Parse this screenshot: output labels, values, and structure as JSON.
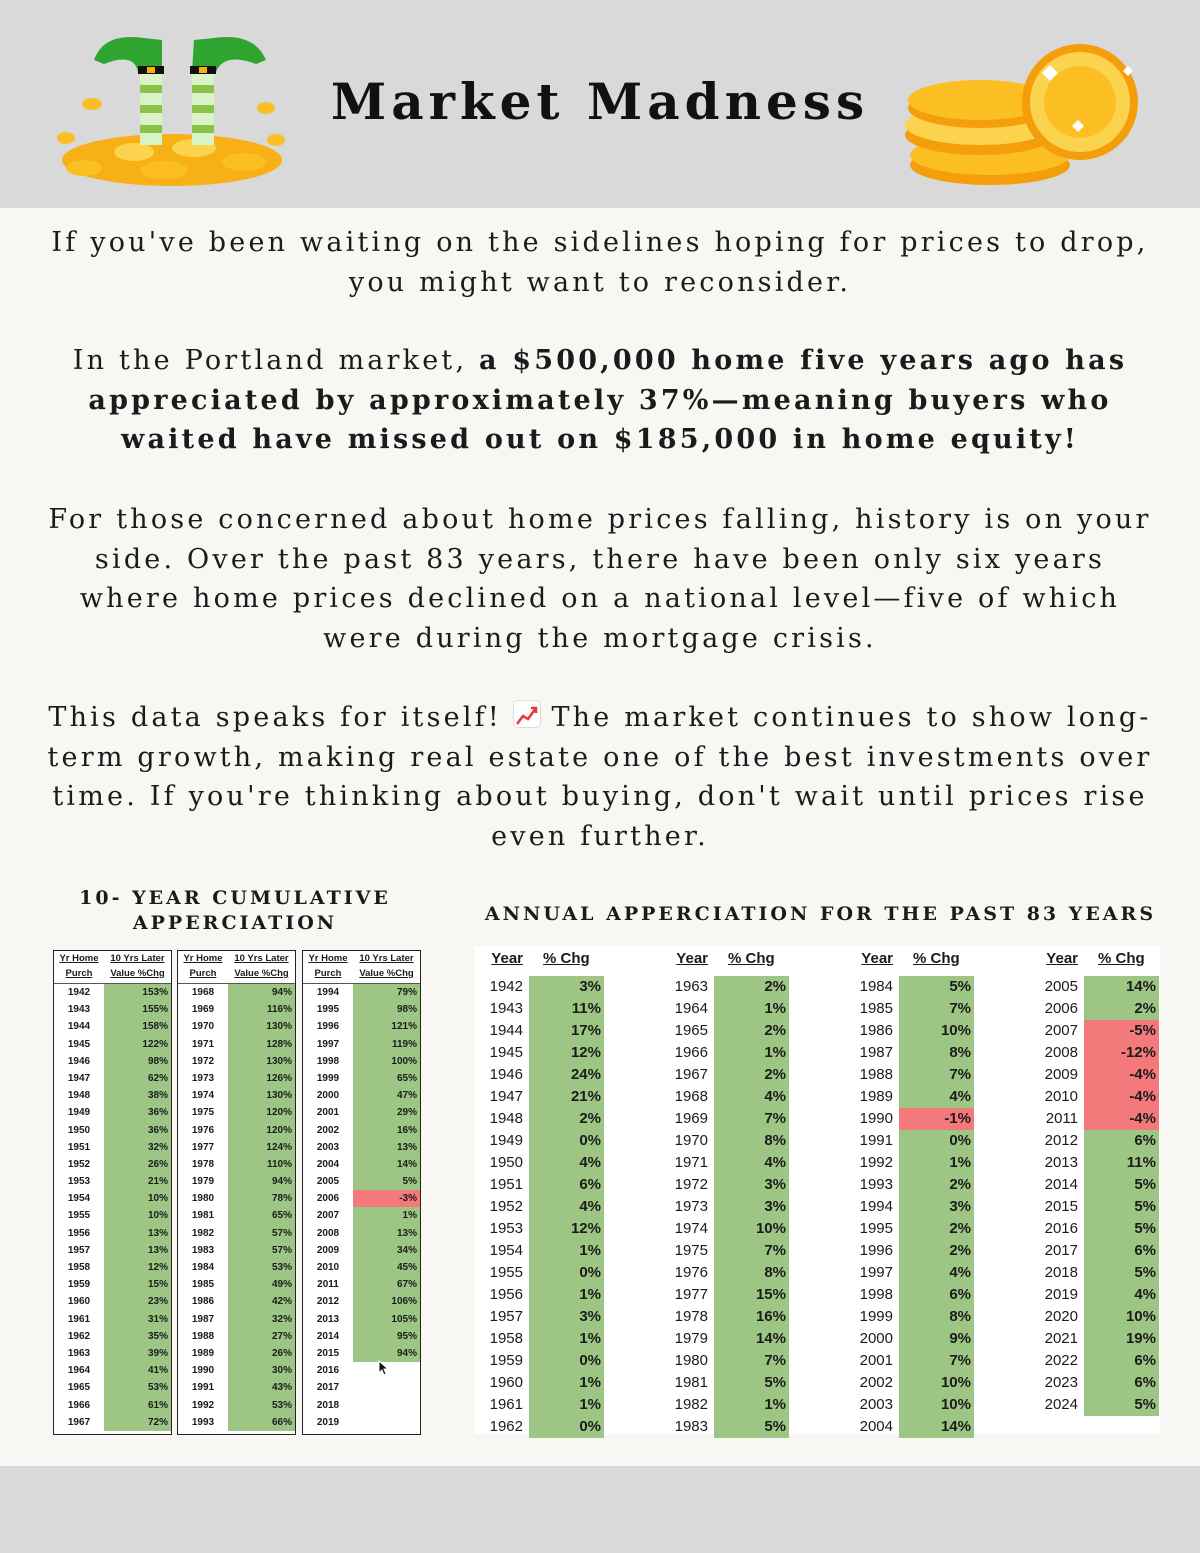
{
  "title": "Market Madness",
  "paragraphs": {
    "p1_line1": "If you've been waiting on the sidelines hoping for prices to drop,",
    "p1_line2": "you might want to reconsider.",
    "p2_prefix": "In the Portland market, ",
    "p2_bold": "a $500,000 home five years ago has appreciated by approximately 37%—meaning buyers who waited have missed out on $185,000 in home equity!",
    "p3": "For those concerned about home prices falling, history is on your side. Over the past 83 years, there have been only six years where home prices declined on a national level—five of which were during the mortgage crisis.",
    "p4_prefix": "This data speaks for itself! ",
    "p4_suffix": " The market continues to show long-term growth, making real estate one of the best investments over time. If you're thinking about buying, don't wait until prices rise even further."
  },
  "cumulative": {
    "title_line1": "10- YEAR CUMULATIVE",
    "title_line2": "APPERCIATION",
    "header_year": "Yr Home Purch",
    "header_value": "10 Yrs Later Value %Chg",
    "tables": [
      {
        "rows": [
          [
            "1942",
            "153%"
          ],
          [
            "1943",
            "155%"
          ],
          [
            "1944",
            "158%"
          ],
          [
            "1945",
            "122%"
          ],
          [
            "1946",
            "98%"
          ],
          [
            "1947",
            "62%"
          ],
          [
            "1948",
            "38%"
          ],
          [
            "1949",
            "36%"
          ],
          [
            "1950",
            "36%"
          ],
          [
            "1951",
            "32%"
          ],
          [
            "1952",
            "26%"
          ],
          [
            "1953",
            "21%"
          ],
          [
            "1954",
            "10%"
          ],
          [
            "1955",
            "10%"
          ],
          [
            "1956",
            "13%"
          ],
          [
            "1957",
            "13%"
          ],
          [
            "1958",
            "12%"
          ],
          [
            "1959",
            "15%"
          ],
          [
            "1960",
            "23%"
          ],
          [
            "1961",
            "31%"
          ],
          [
            "1962",
            "35%"
          ],
          [
            "1963",
            "39%"
          ],
          [
            "1964",
            "41%"
          ],
          [
            "1965",
            "53%"
          ],
          [
            "1966",
            "61%"
          ],
          [
            "1967",
            "72%"
          ]
        ]
      },
      {
        "rows": [
          [
            "1968",
            "94%"
          ],
          [
            "1969",
            "116%"
          ],
          [
            "1970",
            "130%"
          ],
          [
            "1971",
            "128%"
          ],
          [
            "1972",
            "130%"
          ],
          [
            "1973",
            "126%"
          ],
          [
            "1974",
            "130%"
          ],
          [
            "1975",
            "120%"
          ],
          [
            "1976",
            "120%"
          ],
          [
            "1977",
            "124%"
          ],
          [
            "1978",
            "110%"
          ],
          [
            "1979",
            "94%"
          ],
          [
            "1980",
            "78%"
          ],
          [
            "1981",
            "65%"
          ],
          [
            "1982",
            "57%"
          ],
          [
            "1983",
            "57%"
          ],
          [
            "1984",
            "53%"
          ],
          [
            "1985",
            "49%"
          ],
          [
            "1986",
            "42%"
          ],
          [
            "1987",
            "32%"
          ],
          [
            "1988",
            "27%"
          ],
          [
            "1989",
            "26%"
          ],
          [
            "1990",
            "30%"
          ],
          [
            "1991",
            "43%"
          ],
          [
            "1992",
            "53%"
          ],
          [
            "1993",
            "66%"
          ]
        ]
      },
      {
        "rows": [
          [
            "1994",
            "79%"
          ],
          [
            "1995",
            "98%"
          ],
          [
            "1996",
            "121%"
          ],
          [
            "1997",
            "119%"
          ],
          [
            "1998",
            "100%"
          ],
          [
            "1999",
            "65%"
          ],
          [
            "2000",
            "47%"
          ],
          [
            "2001",
            "29%"
          ],
          [
            "2002",
            "16%"
          ],
          [
            "2003",
            "13%"
          ],
          [
            "2004",
            "14%"
          ],
          [
            "2005",
            "5%"
          ],
          [
            "2006",
            "-3%"
          ],
          [
            "2007",
            "1%"
          ],
          [
            "2008",
            "13%"
          ],
          [
            "2009",
            "34%"
          ],
          [
            "2010",
            "45%"
          ],
          [
            "2011",
            "67%"
          ],
          [
            "2012",
            "106%"
          ],
          [
            "2013",
            "105%"
          ],
          [
            "2014",
            "95%"
          ],
          [
            "2015",
            "94%"
          ],
          [
            "2016",
            ""
          ],
          [
            "2017",
            ""
          ],
          [
            "2018",
            ""
          ],
          [
            "2019",
            ""
          ]
        ]
      }
    ]
  },
  "annual": {
    "title": "ANNUAL APPERCIATION FOR THE PAST 83 YEARS",
    "header_year": "Year",
    "header_value": "% Chg",
    "columns": [
      {
        "rows": [
          [
            "1942",
            "3%"
          ],
          [
            "1943",
            "11%"
          ],
          [
            "1944",
            "17%"
          ],
          [
            "1945",
            "12%"
          ],
          [
            "1946",
            "24%"
          ],
          [
            "1947",
            "21%"
          ],
          [
            "1948",
            "2%"
          ],
          [
            "1949",
            "0%"
          ],
          [
            "1950",
            "4%"
          ],
          [
            "1951",
            "6%"
          ],
          [
            "1952",
            "4%"
          ],
          [
            "1953",
            "12%"
          ],
          [
            "1954",
            "1%"
          ],
          [
            "1955",
            "0%"
          ],
          [
            "1956",
            "1%"
          ],
          [
            "1957",
            "3%"
          ],
          [
            "1958",
            "1%"
          ],
          [
            "1959",
            "0%"
          ],
          [
            "1960",
            "1%"
          ],
          [
            "1961",
            "1%"
          ],
          [
            "1962",
            "0%"
          ]
        ]
      },
      {
        "rows": [
          [
            "1963",
            "2%"
          ],
          [
            "1964",
            "1%"
          ],
          [
            "1965",
            "2%"
          ],
          [
            "1966",
            "1%"
          ],
          [
            "1967",
            "2%"
          ],
          [
            "1968",
            "4%"
          ],
          [
            "1969",
            "7%"
          ],
          [
            "1970",
            "8%"
          ],
          [
            "1971",
            "4%"
          ],
          [
            "1972",
            "3%"
          ],
          [
            "1973",
            "3%"
          ],
          [
            "1974",
            "10%"
          ],
          [
            "1975",
            "7%"
          ],
          [
            "1976",
            "8%"
          ],
          [
            "1977",
            "15%"
          ],
          [
            "1978",
            "16%"
          ],
          [
            "1979",
            "14%"
          ],
          [
            "1980",
            "7%"
          ],
          [
            "1981",
            "5%"
          ],
          [
            "1982",
            "1%"
          ],
          [
            "1983",
            "5%"
          ]
        ]
      },
      {
        "rows": [
          [
            "1984",
            "5%"
          ],
          [
            "1985",
            "7%"
          ],
          [
            "1986",
            "10%"
          ],
          [
            "1987",
            "8%"
          ],
          [
            "1988",
            "7%"
          ],
          [
            "1989",
            "4%"
          ],
          [
            "1990",
            "-1%"
          ],
          [
            "1991",
            "0%"
          ],
          [
            "1992",
            "1%"
          ],
          [
            "1993",
            "2%"
          ],
          [
            "1994",
            "3%"
          ],
          [
            "1995",
            "2%"
          ],
          [
            "1996",
            "2%"
          ],
          [
            "1997",
            "4%"
          ],
          [
            "1998",
            "6%"
          ],
          [
            "1999",
            "8%"
          ],
          [
            "2000",
            "9%"
          ],
          [
            "2001",
            "7%"
          ],
          [
            "2002",
            "10%"
          ],
          [
            "2003",
            "10%"
          ],
          [
            "2004",
            "14%"
          ]
        ]
      },
      {
        "rows": [
          [
            "2005",
            "14%"
          ],
          [
            "2006",
            "2%"
          ],
          [
            "2007",
            "-5%"
          ],
          [
            "2008",
            "-12%"
          ],
          [
            "2009",
            "-4%"
          ],
          [
            "2010",
            "-4%"
          ],
          [
            "2011",
            "-4%"
          ],
          [
            "2012",
            "6%"
          ],
          [
            "2013",
            "11%"
          ],
          [
            "2014",
            "5%"
          ],
          [
            "2015",
            "5%"
          ],
          [
            "2016",
            "5%"
          ],
          [
            "2017",
            "6%"
          ],
          [
            "2018",
            "5%"
          ],
          [
            "2019",
            "4%"
          ],
          [
            "2020",
            "10%"
          ],
          [
            "2021",
            "19%"
          ],
          [
            "2022",
            "6%"
          ],
          [
            "2023",
            "6%"
          ],
          [
            "2024",
            "5%"
          ]
        ]
      }
    ]
  },
  "colors": {
    "positive": "#9dc684",
    "negative": "#f4797a",
    "header_band": "#d9d9d9"
  },
  "icons": [
    "leprechaun-legs-gold-icon",
    "gold-coins-icon",
    "chart-increasing-icon",
    "mouse-cursor-icon"
  ]
}
